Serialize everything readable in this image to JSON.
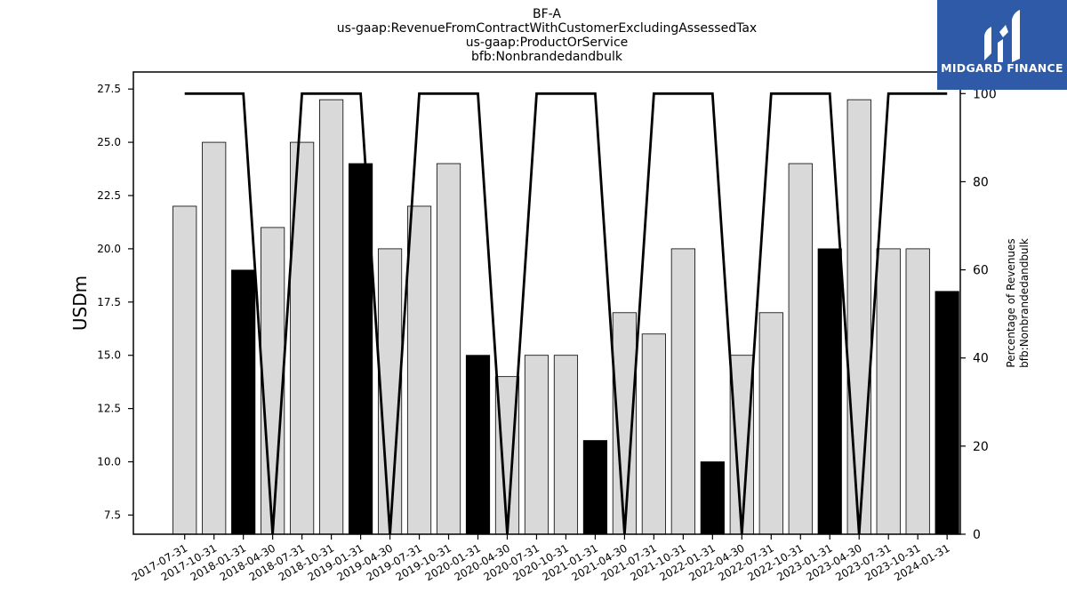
{
  "logo": {
    "text": "MIDGARD FINANCE",
    "background": "#2f5aa8"
  },
  "chart_data": {
    "type": "bar",
    "title_lines": [
      "BF-A",
      "us-gaap:RevenueFromContractWithCustomerExcludingAssessedTax",
      "us-gaap:ProductOrService",
      "bfb:Nonbrandedandbulk"
    ],
    "ylabel_left": "USDm",
    "ylabel_right_lines": [
      "Percentage of Revenues",
      "bfb:Nonbrandedandbulk"
    ],
    "ylim_left": [
      6.6,
      28.3
    ],
    "ylim_right": [
      0,
      104.9
    ],
    "yticks_left": [
      "7.5",
      "10.0",
      "12.5",
      "15.0",
      "17.5",
      "20.0",
      "22.5",
      "25.0",
      "27.5"
    ],
    "yticks_right": [
      "0",
      "20",
      "40",
      "60",
      "80",
      "100"
    ],
    "categories": [
      "2017-07-31",
      "2017-10-31",
      "2018-01-31",
      "2018-04-30",
      "2018-07-31",
      "2018-10-31",
      "2019-01-31",
      "2019-04-30",
      "2019-07-31",
      "2019-10-31",
      "2020-01-31",
      "2020-04-30",
      "2020-07-31",
      "2020-10-31",
      "2021-01-31",
      "2021-04-30",
      "2021-07-31",
      "2021-10-31",
      "2022-01-31",
      "2022-04-30",
      "2022-07-31",
      "2022-10-31",
      "2023-01-31",
      "2023-04-30",
      "2023-07-31",
      "2023-10-31",
      "2024-01-31"
    ],
    "series": [
      {
        "values": [
          22,
          25,
          19,
          21,
          25,
          27,
          24,
          20,
          22,
          24,
          15,
          14,
          15,
          15,
          11,
          17,
          16,
          20,
          10,
          15,
          17,
          24,
          20,
          27,
          20,
          20,
          18
        ],
        "highlight": [
          false,
          false,
          true,
          false,
          false,
          false,
          true,
          false,
          false,
          false,
          true,
          false,
          false,
          false,
          true,
          false,
          false,
          false,
          true,
          false,
          false,
          false,
          true,
          false,
          false,
          false,
          true
        ]
      },
      {
        "type": "line",
        "axis": "right",
        "values": [
          100,
          100,
          100,
          0,
          100,
          100,
          100,
          0,
          100,
          100,
          100,
          0,
          100,
          100,
          100,
          0,
          100,
          100,
          100,
          0,
          100,
          100,
          100,
          0,
          100,
          100,
          100
        ]
      }
    ],
    "colors": {
      "bar": "#d9d9d9",
      "bar_highlight": "#000000",
      "line": "#000000",
      "edge": "#000000"
    },
    "grid": false,
    "legend": "none"
  }
}
